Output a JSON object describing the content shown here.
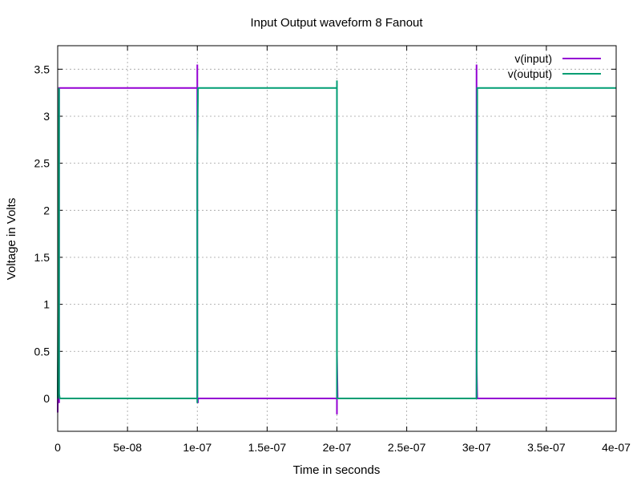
{
  "chart_data": {
    "type": "line",
    "title": "Input Output waveform 8 Fanout",
    "xlabel": "Time in seconds",
    "ylabel": "Voltage in Volts",
    "xlim": [
      0,
      4e-07
    ],
    "ylim": [
      -0.35,
      3.75
    ],
    "x_ticks": [
      {
        "value": 0,
        "label": "0"
      },
      {
        "value": 5e-08,
        "label": "5e-08"
      },
      {
        "value": 1e-07,
        "label": "1e-07"
      },
      {
        "value": 1.5e-07,
        "label": "1.5e-07"
      },
      {
        "value": 2e-07,
        "label": "2e-07"
      },
      {
        "value": 2.5e-07,
        "label": "2.5e-07"
      },
      {
        "value": 3e-07,
        "label": "3e-07"
      },
      {
        "value": 3.5e-07,
        "label": "3.5e-07"
      },
      {
        "value": 4e-07,
        "label": "4e-07"
      }
    ],
    "y_ticks": [
      {
        "value": 0,
        "label": "0"
      },
      {
        "value": 0.5,
        "label": "0.5"
      },
      {
        "value": 1,
        "label": "1"
      },
      {
        "value": 1.5,
        "label": "1.5"
      },
      {
        "value": 2,
        "label": "2"
      },
      {
        "value": 2.5,
        "label": "2.5"
      },
      {
        "value": 3,
        "label": "3"
      },
      {
        "value": 3.5,
        "label": "3.5"
      }
    ],
    "grid": true,
    "legend_position": "top-right",
    "series": [
      {
        "name": "v(input)",
        "color": "#9400d3",
        "x": [
          0,
          1e-09,
          1e-09,
          1e-09,
          1.5e-09,
          1.5e-09,
          2e-09,
          1e-07,
          1e-07,
          1e-07,
          1.005e-07,
          1.005e-07,
          1.01e-07,
          2e-07,
          2e-07,
          2e-07,
          2.005e-07,
          2.005e-07,
          2.01e-07,
          3e-07,
          3e-07,
          3e-07,
          3.005e-07,
          3.005e-07,
          3.01e-07,
          4e-07
        ],
        "y": [
          -0.15,
          1.85,
          -0.05,
          3.3,
          3.3,
          3.3,
          3.3,
          3.3,
          3.55,
          0.0,
          -0.05,
          0.0,
          0.0,
          0.0,
          -0.17,
          0.47,
          0.0,
          0.0,
          0.0,
          0.0,
          3.55,
          0.4,
          0.0,
          0.0,
          0.0,
          0.0
        ]
      },
      {
        "name": "v(output)",
        "color": "#009e73",
        "x": [
          0,
          1e-09,
          1e-09,
          1.5e-09,
          2.5e-09,
          1e-07,
          1e-07,
          1e-07,
          1.005e-07,
          1.01e-07,
          2e-07,
          2e-07,
          2e-07,
          2.005e-07,
          2.01e-07,
          3e-07,
          3e-07,
          3e-07,
          3.005e-07,
          3.005e-07,
          3.01e-07,
          4e-07
        ],
        "y": [
          0.0,
          3.3,
          0.05,
          0.0,
          0.0,
          0.0,
          -0.05,
          2.5,
          3.3,
          3.3,
          3.3,
          3.38,
          0.0,
          0.0,
          0.0,
          0.0,
          0.15,
          0.0,
          3.15,
          3.3,
          3.3,
          3.3
        ]
      }
    ]
  }
}
